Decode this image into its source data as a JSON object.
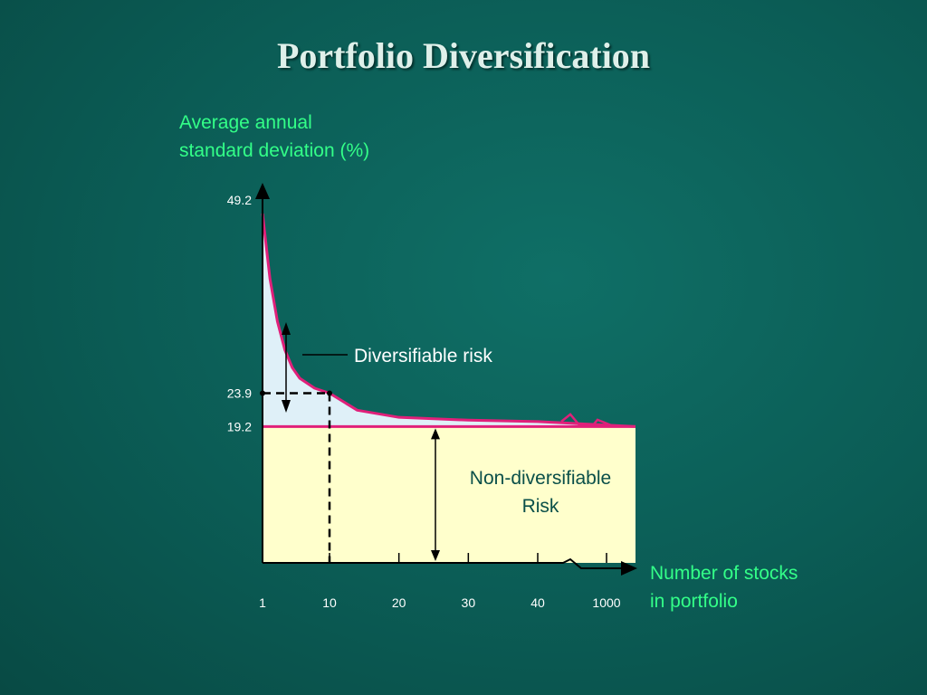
{
  "title": "Portfolio Diversification",
  "chart_data": {
    "type": "area",
    "title": "Portfolio Diversification",
    "ylabel": [
      "Average annual",
      "standard deviation (%)"
    ],
    "xlabel": [
      "Number of stocks",
      "in portfolio"
    ],
    "x_ticks": [
      "1",
      "10",
      "20",
      "30",
      "40",
      "1000"
    ],
    "y_ticks": [
      "49.2",
      "23.9",
      "19.2"
    ],
    "x_scale": "broken",
    "ylim": [
      0,
      49.2
    ],
    "series": [
      {
        "x": [
          1,
          2,
          3,
          4,
          5,
          6,
          8,
          10,
          14,
          20,
          30,
          40,
          1000
        ],
        "values": [
          49.2,
          40,
          34,
          30,
          27.5,
          26,
          24.6,
          23.9,
          21.5,
          20.5,
          20.1,
          19.9,
          19.2
        ]
      }
    ],
    "horizontal_line": 19.2,
    "annotations": {
      "diversifiable": "Diversifiable risk",
      "non_diversifiable": [
        "Non-diversifiable",
        "Risk"
      ]
    },
    "colors": {
      "curve": "#e0207a",
      "diversifiable_fill": "#dff0f8",
      "non_diversifiable_fill": "#ffffcc",
      "axis": "#000000"
    }
  }
}
